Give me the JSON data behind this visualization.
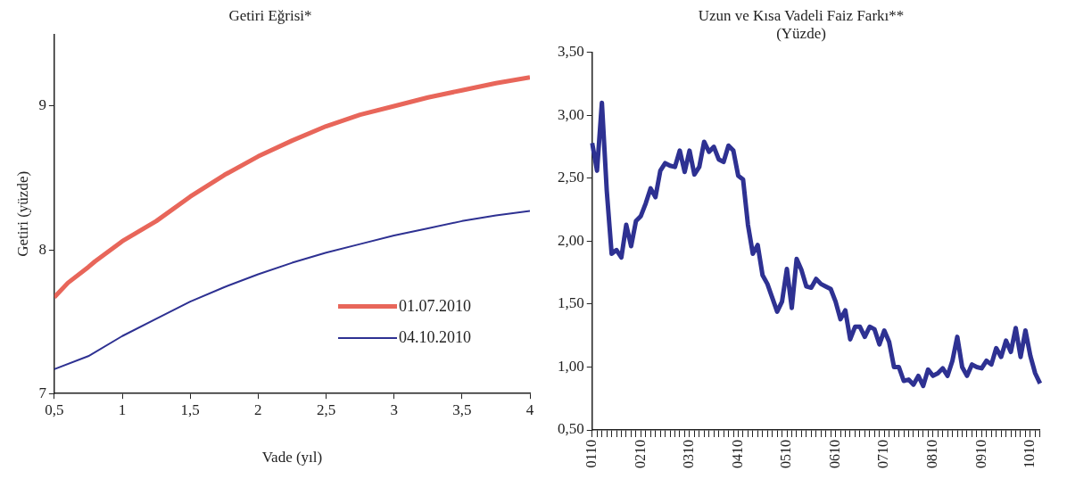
{
  "chart_data": [
    {
      "type": "line",
      "title": "Getiri Eğrisi*",
      "xlabel": "Vade (yıl)",
      "ylabel": "Getiri (yüzde)",
      "xlim": [
        0.5,
        4
      ],
      "xticks": [
        {
          "value": 0.5,
          "label": "0,5"
        },
        1,
        {
          "value": 1.5,
          "label": "1,5"
        },
        2,
        {
          "value": 2.5,
          "label": "2,5"
        },
        3,
        {
          "value": 3.5,
          "label": "3,5"
        },
        4
      ],
      "ylim": [
        7,
        9.5
      ],
      "yticks": [
        7,
        8,
        9
      ],
      "grid": false,
      "legend": "bottom right",
      "marker": "none",
      "line_style": "solid",
      "series": [
        {
          "name": "01.07.2010",
          "color": "#e8665a",
          "x": [
            0.5,
            0.6,
            0.75,
            0.8,
            1,
            1.25,
            1.5,
            1.75,
            2,
            2.25,
            2.5,
            2.75,
            3,
            3.25,
            3.5,
            3.75,
            4
          ],
          "values": [
            7.67,
            7.77,
            7.88,
            7.92,
            8.06,
            8.2,
            8.37,
            8.52,
            8.65,
            8.76,
            8.86,
            8.94,
            9.0,
            9.06,
            9.11,
            9.16,
            9.2
          ]
        },
        {
          "name": "04.10.2010",
          "color": "#2e3192",
          "x": [
            0.5,
            0.75,
            1,
            1.25,
            1.5,
            1.75,
            2,
            2.25,
            2.5,
            2.75,
            3,
            3.25,
            3.5,
            3.75,
            4
          ],
          "values": [
            7.17,
            7.26,
            7.4,
            7.52,
            7.64,
            7.74,
            7.83,
            7.91,
            7.98,
            8.04,
            8.1,
            8.15,
            8.2,
            8.24,
            8.27
          ]
        }
      ]
    },
    {
      "type": "line",
      "title": "Uzun ve Kısa Vadeli Faiz Farkı**",
      "subtitle": "(Yüzde)",
      "ylim": [
        0.5,
        3.5
      ],
      "yticks": [
        {
          "value": 0.5,
          "label": "0,50"
        },
        {
          "value": 1,
          "label": "1,00"
        },
        {
          "value": 1.5,
          "label": "1,50"
        },
        {
          "value": 2,
          "label": "2,00"
        },
        {
          "value": 2.5,
          "label": "2,50"
        },
        {
          "value": 3,
          "label": "3,00"
        },
        {
          "value": 3.5,
          "label": "3,50"
        }
      ],
      "grid": false,
      "legend": false,
      "marker": "none",
      "line_style": "solid",
      "categories": [
        "0110",
        null,
        null,
        null,
        null,
        null,
        null,
        null,
        null,
        null,
        "0210",
        null,
        null,
        null,
        null,
        null,
        null,
        null,
        null,
        null,
        "0310",
        null,
        null,
        null,
        null,
        null,
        null,
        null,
        null,
        null,
        "0410",
        null,
        null,
        null,
        null,
        null,
        null,
        null,
        null,
        null,
        "0510",
        null,
        null,
        null,
        null,
        null,
        null,
        null,
        null,
        null,
        "0610",
        null,
        null,
        null,
        null,
        null,
        null,
        null,
        null,
        null,
        "0710",
        null,
        null,
        null,
        null,
        null,
        null,
        null,
        null,
        null,
        "0810",
        null,
        null,
        null,
        null,
        null,
        null,
        null,
        null,
        null,
        "0910",
        null,
        null,
        null,
        null,
        null,
        null,
        null,
        null,
        null,
        "1010",
        null,
        null
      ],
      "series": [
        {
          "color": "#2e3192",
          "values": [
            2.78,
            2.56,
            3.1,
            2.4,
            1.9,
            1.93,
            1.87,
            2.13,
            1.96,
            2.16,
            2.2,
            2.3,
            2.42,
            2.35,
            2.56,
            2.62,
            2.6,
            2.59,
            2.72,
            2.55,
            2.72,
            2.53,
            2.59,
            2.79,
            2.71,
            2.75,
            2.65,
            2.63,
            2.76,
            2.72,
            2.52,
            2.49,
            2.13,
            1.9,
            1.97,
            1.73,
            1.66,
            1.55,
            1.44,
            1.52,
            1.78,
            1.47,
            1.86,
            1.77,
            1.64,
            1.63,
            1.7,
            1.66,
            1.64,
            1.62,
            1.52,
            1.38,
            1.45,
            1.22,
            1.32,
            1.32,
            1.24,
            1.32,
            1.3,
            1.18,
            1.29,
            1.2,
            1.0,
            1.0,
            0.89,
            0.9,
            0.86,
            0.93,
            0.85,
            0.98,
            0.93,
            0.95,
            0.99,
            0.93,
            1.05,
            1.24,
            1.0,
            0.93,
            1.02,
            1.0,
            0.99,
            1.05,
            1.02,
            1.15,
            1.08,
            1.21,
            1.12,
            1.31,
            1.08,
            1.29,
            1.09,
            0.95,
            0.87
          ]
        }
      ]
    }
  ]
}
